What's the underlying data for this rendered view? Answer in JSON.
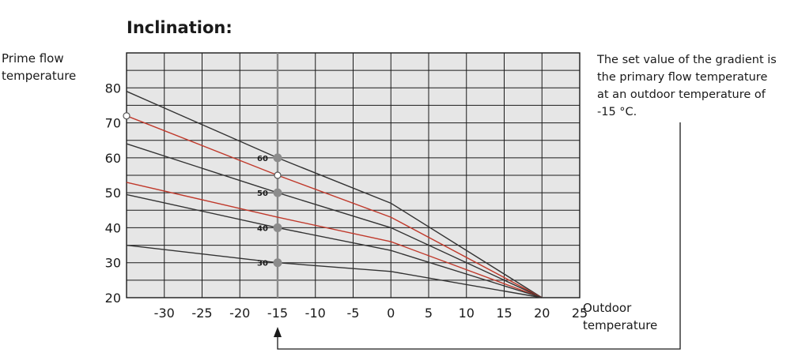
{
  "chart_data": {
    "type": "line",
    "title": "Inclination:",
    "ylabel": [
      "Prime flow",
      "temperature"
    ],
    "xlabel": [
      "Outdoor",
      "temperature"
    ],
    "xlim": [
      -35,
      25
    ],
    "ylim": [
      20,
      90
    ],
    "x_ticks": [
      -30,
      -25,
      -20,
      -15,
      -10,
      -5,
      0,
      5,
      10,
      15,
      20,
      25
    ],
    "x_tick_labels": [
      "-30",
      "-25",
      "-20",
      "-15",
      "-10",
      "-5",
      "0",
      "5",
      "10",
      "15",
      "20",
      "25"
    ],
    "y_ticks": [
      20,
      30,
      40,
      50,
      60,
      70,
      80
    ],
    "y_tick_labels": [
      "20",
      "30",
      "40",
      "50",
      "60",
      "70",
      "80"
    ],
    "grid": true,
    "reference_x": -15,
    "series": [
      {
        "points": [
          [
            -35,
            79
          ],
          [
            -15,
            60
          ],
          [
            0,
            47
          ],
          [
            20,
            20
          ]
        ],
        "color": "#333333"
      },
      {
        "points": [
          [
            -35,
            72
          ],
          [
            -15,
            55
          ],
          [
            0,
            43
          ],
          [
            20,
            20
          ]
        ],
        "color": "#c0392b"
      },
      {
        "points": [
          [
            -35,
            64
          ],
          [
            -15,
            50
          ],
          [
            0,
            40
          ],
          [
            20,
            20
          ]
        ],
        "color": "#333333"
      },
      {
        "points": [
          [
            -35,
            53
          ],
          [
            -15,
            43
          ],
          [
            0,
            36
          ],
          [
            20,
            20
          ]
        ],
        "color": "#c0392b"
      },
      {
        "points": [
          [
            -35,
            49.5
          ],
          [
            -15,
            40
          ],
          [
            0,
            33.5
          ],
          [
            20,
            20
          ]
        ],
        "color": "#333333"
      },
      {
        "points": [
          [
            -35,
            35
          ],
          [
            -15,
            30
          ],
          [
            0,
            27.5
          ],
          [
            20,
            20
          ]
        ],
        "color": "#333333"
      }
    ],
    "markers": [
      {
        "x": -15,
        "y": 60,
        "label": "60"
      },
      {
        "x": -15,
        "y": 50,
        "label": "50"
      },
      {
        "x": -15,
        "y": 40,
        "label": "40"
      },
      {
        "x": -15,
        "y": 30,
        "label": "30"
      }
    ],
    "open_points": [
      {
        "x": -35,
        "y": 72
      },
      {
        "x": -15,
        "y": 55
      }
    ],
    "annotation": [
      "The set value of the gradient is",
      "the primary flow temperature",
      "at an outdoor temperature of",
      "-15 °C."
    ]
  }
}
